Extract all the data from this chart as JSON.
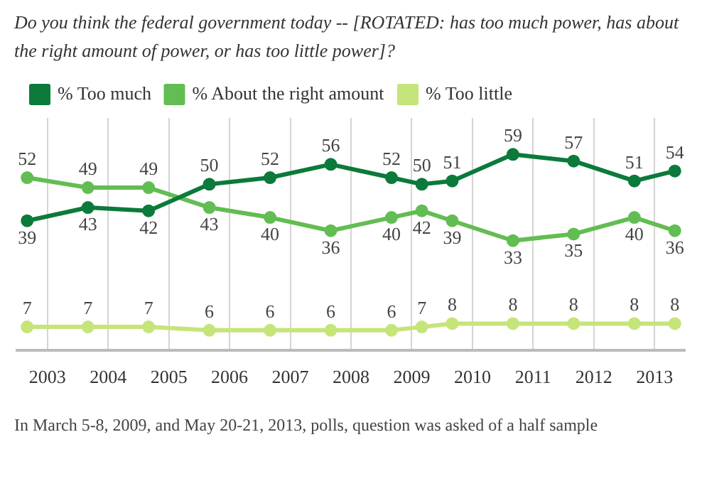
{
  "chart_data": {
    "type": "line",
    "title": "Do you think the federal government today -- [ROTATED: has too much power, has about the right amount of power, or has too little power]?",
    "x": [
      "2002-09",
      "2003-09",
      "2004-09",
      "2005-09",
      "2006-09",
      "2007-09",
      "2008-09",
      "2009-03",
      "2009-09",
      "2010-09",
      "2011-09",
      "2012-09",
      "2013-05"
    ],
    "series": [
      {
        "name": "% Too much",
        "color": "#0b7a3a",
        "values": [
          39,
          43,
          42,
          50,
          52,
          56,
          52,
          50,
          51,
          59,
          57,
          51,
          54
        ]
      },
      {
        "name": "% About the right amount",
        "color": "#62bd52",
        "values": [
          52,
          49,
          49,
          43,
          40,
          36,
          40,
          42,
          39,
          33,
          35,
          40,
          36
        ]
      },
      {
        "name": "% Too little",
        "color": "#c5e57a",
        "values": [
          7,
          7,
          7,
          6,
          6,
          6,
          6,
          7,
          8,
          8,
          8,
          8,
          8
        ]
      }
    ],
    "xlim": [
      "2002-07",
      "2013-07"
    ],
    "xticks": [
      "2003",
      "2004",
      "2005",
      "2006",
      "2007",
      "2008",
      "2009",
      "2010",
      "2011",
      "2012",
      "2013"
    ],
    "grid": "x",
    "legend": "top left",
    "marker": "circle",
    "line_style": "solid",
    "data_labels": true,
    "annotations": [
      "In March 5-8, 2009, and May 20-21, 2013, polls, question was asked of a half sample"
    ]
  }
}
